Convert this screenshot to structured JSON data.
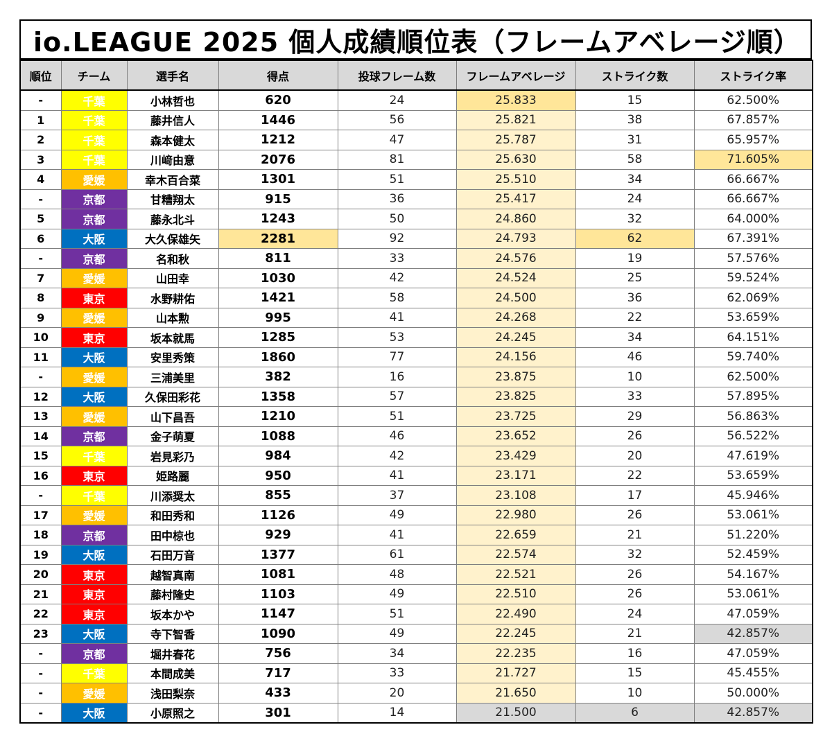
{
  "title": "io.LEAGUE  2025  個人成績順位表（フレームアベレージ順）",
  "headers": [
    "順位",
    "チーム",
    "選手名",
    "得点",
    "投球フレーム数",
    "フレームアベレージ",
    "ストライク数",
    "ストライク率"
  ],
  "team_colors": {
    "千葉": {
      "bg": "#ffff00",
      "fg": "#ffffff"
    },
    "愛媛": {
      "bg": "#ffc000",
      "fg": "#ffffff"
    },
    "京都": {
      "bg": "#7030a0",
      "fg": "#ffffff"
    },
    "大阪": {
      "bg": "#0070c0",
      "fg": "#ffffff"
    },
    "東京": {
      "bg": "#ff0000",
      "fg": "#ffffff"
    }
  },
  "highlight_colors": {
    "average_fill": "#fff2cc",
    "best": "#ffe699",
    "worst": "#d9d9d9"
  },
  "rows": [
    {
      "rank": "-",
      "team": "千葉",
      "name": "小林哲也",
      "score": "620",
      "frames": "24",
      "average": "25.833",
      "strikes": "15",
      "strike_rate": "62.500%"
    },
    {
      "rank": "1",
      "team": "千葉",
      "name": "藤井信人",
      "score": "1446",
      "frames": "56",
      "average": "25.821",
      "strikes": "38",
      "strike_rate": "67.857%"
    },
    {
      "rank": "2",
      "team": "千葉",
      "name": "森本健太",
      "score": "1212",
      "frames": "47",
      "average": "25.787",
      "strikes": "31",
      "strike_rate": "65.957%"
    },
    {
      "rank": "3",
      "team": "千葉",
      "name": "川﨑由意",
      "score": "2076",
      "frames": "81",
      "average": "25.630",
      "strikes": "58",
      "strike_rate": "71.605%"
    },
    {
      "rank": "4",
      "team": "愛媛",
      "name": "幸木百合菜",
      "score": "1301",
      "frames": "51",
      "average": "25.510",
      "strikes": "34",
      "strike_rate": "66.667%"
    },
    {
      "rank": "-",
      "team": "京都",
      "name": "甘糟翔太",
      "score": "915",
      "frames": "36",
      "average": "25.417",
      "strikes": "24",
      "strike_rate": "66.667%"
    },
    {
      "rank": "5",
      "team": "京都",
      "name": "藤永北斗",
      "score": "1243",
      "frames": "50",
      "average": "24.860",
      "strikes": "32",
      "strike_rate": "64.000%"
    },
    {
      "rank": "6",
      "team": "大阪",
      "name": "大久保雄矢",
      "score": "2281",
      "frames": "92",
      "average": "24.793",
      "strikes": "62",
      "strike_rate": "67.391%"
    },
    {
      "rank": "-",
      "team": "京都",
      "name": "名和秋",
      "score": "811",
      "frames": "33",
      "average": "24.576",
      "strikes": "19",
      "strike_rate": "57.576%"
    },
    {
      "rank": "7",
      "team": "愛媛",
      "name": "山田幸",
      "score": "1030",
      "frames": "42",
      "average": "24.524",
      "strikes": "25",
      "strike_rate": "59.524%"
    },
    {
      "rank": "8",
      "team": "東京",
      "name": "水野耕佑",
      "score": "1421",
      "frames": "58",
      "average": "24.500",
      "strikes": "36",
      "strike_rate": "62.069%"
    },
    {
      "rank": "9",
      "team": "愛媛",
      "name": "山本勲",
      "score": "995",
      "frames": "41",
      "average": "24.268",
      "strikes": "22",
      "strike_rate": "53.659%"
    },
    {
      "rank": "10",
      "team": "東京",
      "name": "坂本就馬",
      "score": "1285",
      "frames": "53",
      "average": "24.245",
      "strikes": "34",
      "strike_rate": "64.151%"
    },
    {
      "rank": "11",
      "team": "大阪",
      "name": "安里秀策",
      "score": "1860",
      "frames": "77",
      "average": "24.156",
      "strikes": "46",
      "strike_rate": "59.740%"
    },
    {
      "rank": "-",
      "team": "愛媛",
      "name": "三浦美里",
      "score": "382",
      "frames": "16",
      "average": "23.875",
      "strikes": "10",
      "strike_rate": "62.500%"
    },
    {
      "rank": "12",
      "team": "大阪",
      "name": "久保田彩花",
      "score": "1358",
      "frames": "57",
      "average": "23.825",
      "strikes": "33",
      "strike_rate": "57.895%"
    },
    {
      "rank": "13",
      "team": "愛媛",
      "name": "山下昌吾",
      "score": "1210",
      "frames": "51",
      "average": "23.725",
      "strikes": "29",
      "strike_rate": "56.863%"
    },
    {
      "rank": "14",
      "team": "京都",
      "name": "金子萌夏",
      "score": "1088",
      "frames": "46",
      "average": "23.652",
      "strikes": "26",
      "strike_rate": "56.522%"
    },
    {
      "rank": "15",
      "team": "千葉",
      "name": "岩見彩乃",
      "score": "984",
      "frames": "42",
      "average": "23.429",
      "strikes": "20",
      "strike_rate": "47.619%"
    },
    {
      "rank": "16",
      "team": "東京",
      "name": "姫路麗",
      "score": "950",
      "frames": "41",
      "average": "23.171",
      "strikes": "22",
      "strike_rate": "53.659%"
    },
    {
      "rank": "-",
      "team": "千葉",
      "name": "川添奨太",
      "score": "855",
      "frames": "37",
      "average": "23.108",
      "strikes": "17",
      "strike_rate": "45.946%"
    },
    {
      "rank": "17",
      "team": "愛媛",
      "name": "和田秀和",
      "score": "1126",
      "frames": "49",
      "average": "22.980",
      "strikes": "26",
      "strike_rate": "53.061%"
    },
    {
      "rank": "18",
      "team": "京都",
      "name": "田中椋也",
      "score": "929",
      "frames": "41",
      "average": "22.659",
      "strikes": "21",
      "strike_rate": "51.220%"
    },
    {
      "rank": "19",
      "team": "大阪",
      "name": "石田万音",
      "score": "1377",
      "frames": "61",
      "average": "22.574",
      "strikes": "32",
      "strike_rate": "52.459%"
    },
    {
      "rank": "20",
      "team": "東京",
      "name": "越智真南",
      "score": "1081",
      "frames": "48",
      "average": "22.521",
      "strikes": "26",
      "strike_rate": "54.167%"
    },
    {
      "rank": "21",
      "team": "東京",
      "name": "藤村隆史",
      "score": "1103",
      "frames": "49",
      "average": "22.510",
      "strikes": "26",
      "strike_rate": "53.061%"
    },
    {
      "rank": "22",
      "team": "東京",
      "name": "坂本かや",
      "score": "1147",
      "frames": "51",
      "average": "22.490",
      "strikes": "24",
      "strike_rate": "47.059%"
    },
    {
      "rank": "23",
      "team": "大阪",
      "name": "寺下智香",
      "score": "1090",
      "frames": "49",
      "average": "22.245",
      "strikes": "21",
      "strike_rate": "42.857%"
    },
    {
      "rank": "-",
      "team": "京都",
      "name": "堀井春花",
      "score": "756",
      "frames": "34",
      "average": "22.235",
      "strikes": "16",
      "strike_rate": "47.059%"
    },
    {
      "rank": "-",
      "team": "千葉",
      "name": "本間成美",
      "score": "717",
      "frames": "33",
      "average": "21.727",
      "strikes": "15",
      "strike_rate": "45.455%"
    },
    {
      "rank": "-",
      "team": "愛媛",
      "name": "浅田梨奈",
      "score": "433",
      "frames": "20",
      "average": "21.650",
      "strikes": "10",
      "strike_rate": "50.000%"
    },
    {
      "rank": "-",
      "team": "大阪",
      "name": "小原照之",
      "score": "301",
      "frames": "14",
      "average": "21.500",
      "strikes": "6",
      "strike_rate": "42.857%"
    }
  ],
  "highlights": {
    "best": [
      {
        "row": 0,
        "col": "average"
      },
      {
        "row": 3,
        "col": "strike_rate"
      },
      {
        "row": 7,
        "col": "score"
      },
      {
        "row": 7,
        "col": "strikes"
      }
    ],
    "worst": [
      {
        "row": 27,
        "col": "strike_rate"
      },
      {
        "row": 31,
        "col": "average"
      },
      {
        "row": 31,
        "col": "strikes"
      },
      {
        "row": 31,
        "col": "strike_rate"
      }
    ]
  }
}
